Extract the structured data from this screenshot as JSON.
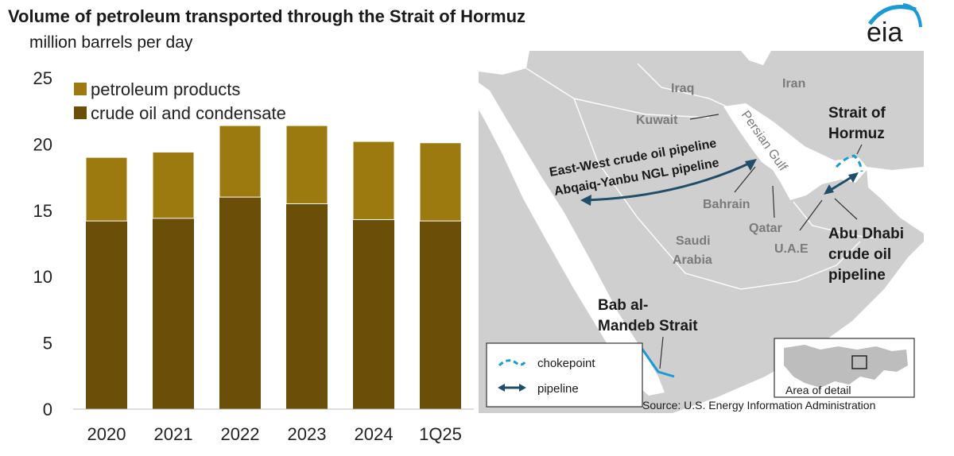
{
  "header": {
    "title": "Volume of petroleum transported through the Strait of Hormuz",
    "subtitle": "million barrels per day",
    "logo_text": "eia"
  },
  "chart_data": {
    "type": "bar",
    "stacked": true,
    "categories": [
      "2020",
      "2021",
      "2022",
      "2023",
      "2024",
      "1Q25"
    ],
    "series": [
      {
        "name": "crude oil and condensate",
        "color": "#6b4f08",
        "values": [
          14.2,
          14.4,
          16.0,
          15.5,
          14.3,
          14.2
        ]
      },
      {
        "name": "petroleum products",
        "color": "#9c7a10",
        "values": [
          4.8,
          5.0,
          5.4,
          5.9,
          5.9,
          5.9
        ]
      }
    ],
    "ylim": [
      0,
      25
    ],
    "yticks": [
      0,
      5,
      10,
      15,
      20,
      25
    ],
    "legend_position": "top-left",
    "grid": false
  },
  "map": {
    "countries": {
      "iraq": "Iraq",
      "iran": "Iran",
      "kuwait": "Kuwait",
      "saudi_arabia_line1": "Saudi",
      "saudi_arabia_line2": "Arabia",
      "bahrain": "Bahrain",
      "qatar": "Qatar",
      "uae": "U.A.E"
    },
    "water": {
      "persian_gulf": "Persian Gulf"
    },
    "pipelines": {
      "east_west": "East-West crude oil pipeline",
      "abqaiq_yanbu": "Abqaiq-Yanbu NGL pipeline",
      "abu_dhabi_line1": "Abu Dhabi",
      "abu_dhabi_line2": "crude oil",
      "abu_dhabi_line3": "pipeline"
    },
    "chokepoints": {
      "hormuz_line1": "Strait of",
      "hormuz_line2": "Hormuz",
      "bab_line1": "Bab al-",
      "bab_line2": "Mandeb Strait"
    },
    "legend": {
      "chokepoint": "chokepoint",
      "pipeline": "pipeline"
    },
    "inset_label": "Area of detail",
    "colors": {
      "chokepoint": "#1a9ad6",
      "pipeline": "#1f4e6b",
      "land": "#cfcfcf",
      "sea": "#ffffff"
    }
  },
  "source": "Source: U.S. Energy Information Administration"
}
